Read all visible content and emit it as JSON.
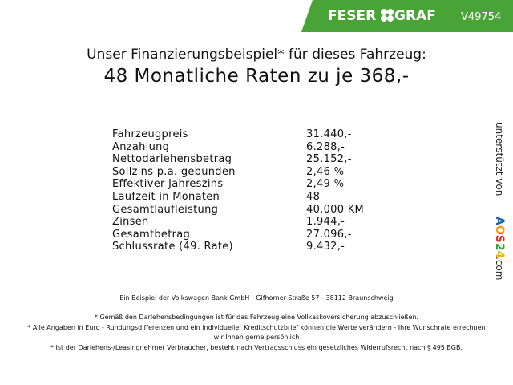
{
  "header": {
    "logo_left": "FESER",
    "logo_right": "GRAF",
    "code": "V49754"
  },
  "title": {
    "line1": "Unser Finanzierungsbeispiel* für dieses Fahrzeug:",
    "line2": "48 Monatliche Raten zu je 368,-"
  },
  "table": {
    "rows": [
      [
        "Fahrzeugpreis",
        "31.440,-"
      ],
      [
        "Anzahlung",
        "6.288,-"
      ],
      [
        "Nettodarlehensbetrag",
        "25.152,-"
      ],
      [
        "Sollzins p.a. gebunden",
        "2,46 %"
      ],
      [
        "Effektiver Jahreszins",
        "2,49 %"
      ],
      [
        "Laufzeit in Monaten",
        "48"
      ],
      [
        "Gesamtlaufleistung",
        "40.000 KM"
      ],
      [
        "Zinsen",
        "1.944,-"
      ],
      [
        "Gesamtbetrag",
        "27.096,-"
      ],
      [
        "Schlussrate (49. Rate)",
        "9.432,-"
      ]
    ]
  },
  "footer": {
    "bank": "Ein Beispiel der Volkswagen Bank GmbH - Gifhorner Straße 57 - 38112 Braunschweig",
    "notes": [
      "* Gemäß den Darlehensbedingungen ist für das Fahrzeug eine Vollkaskoversicherung abzuschließen.",
      "* Alle Angaben in Euro - Rundungsdifferenzen und ein individueller Kreditschutzbrief können die Werte verändern - Ihre Wunschrate errechnen wir Ihnen gerne persönlich",
      "* Ist der Darlehens-/Leasingnehmer Verbraucher, besteht nach Vertragsschluss ein gesetzliches Widerrufsrecht nach § 495 BGB."
    ]
  },
  "sponsor": {
    "prefix": "unterstützt von",
    "brand": "AOS24",
    "suffix": ".com"
  }
}
